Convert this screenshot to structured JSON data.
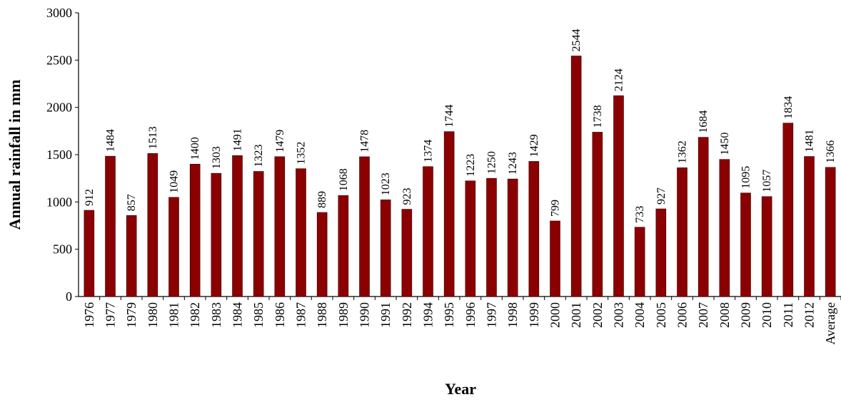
{
  "chart_data": {
    "type": "bar",
    "title": "",
    "xlabel": "Year",
    "ylabel": "Annual rainfall in mm",
    "ylim": [
      0,
      3000
    ],
    "yticks": [
      0,
      500,
      1000,
      1500,
      2000,
      2500,
      3000
    ],
    "grid": false,
    "bar_color": "#8b0000",
    "categories": [
      "1976",
      "1977",
      "1979",
      "1980",
      "1981",
      "1982",
      "1983",
      "1984",
      "1985",
      "1986",
      "1987",
      "1988",
      "1989",
      "1990",
      "1991",
      "1992",
      "1994",
      "1995",
      "1996",
      "1997",
      "1998",
      "1999",
      "2000",
      "2001",
      "2002",
      "2003",
      "2004",
      "2005",
      "2006",
      "2007",
      "2008",
      "2009",
      "2010",
      "2011",
      "2012",
      "Average"
    ],
    "values": [
      912,
      1484,
      857,
      1513,
      1049,
      1400,
      1303,
      1491,
      1323,
      1479,
      1352,
      889,
      1068,
      1478,
      1023,
      923,
      1374,
      1744,
      1223,
      1250,
      1243,
      1429,
      799,
      2544,
      1738,
      2124,
      733,
      927,
      1362,
      1684,
      1450,
      1095,
      1057,
      1834,
      1481,
      1366
    ]
  }
}
